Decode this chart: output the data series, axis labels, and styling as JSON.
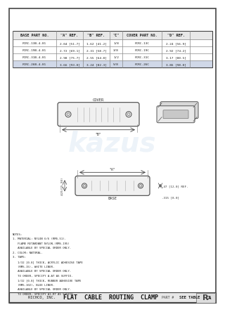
{
  "title": "FLAT CABLE ROUTING CLAMP",
  "bg_color": "#ffffff",
  "border_color": "#888888",
  "table_header": [
    "BASE PART NO.",
    "\"A\" REF.",
    "\"B\" REF.",
    "\"C\"",
    "COVER PART NO.",
    "\"D\" REF."
  ],
  "table_rows": [
    [
      "FCRC-13B-4-01",
      "2.04 [51.7]",
      "1.62 [41.2]",
      "1/8",
      "FCRC-13C",
      "2.24 [56.9]"
    ],
    [
      "FCRC-19B-4-01",
      "2.72 [69.1]",
      "2.31 [58.7]",
      "3/8",
      "FCRC-19C",
      "2.92 [74.2]"
    ],
    [
      "FCRC-31B-4-01",
      "2.98 [75.7]",
      "2.55 [64.8]",
      "1/2",
      "FCRC-31C",
      "3.17 [80.5]"
    ],
    [
      "FCRC-26B-4-01",
      "3.66 [93.0]",
      "3.24 [82.3]",
      "5/8",
      "FCRC-26C",
      "3.86 [98.0]"
    ]
  ],
  "notes": [
    "NOTES:",
    "1. MATERIAL: NYLON 6/6 (RMS-51).",
    "   FLAME RETARDANT NYLON-(RMS-195)",
    "   AVAILABLE BY SPECIAL ORDER ONLY.",
    "2. COLOR: NATURAL.",
    "3. TAPE:",
    "   1/32 [0.8] THICK, ACRYLIC ADHESIVE TAPE",
    "   (RMS-15), WHITE LINER.",
    "   AVAILABLE BY SPECIAL ORDER ONLY.",
    "   TO ORDER, SPECIFY A-AT AS SUFFIX.",
    "   1/32 [0.8] THICK, RUBBER ADHESIVE TAPE",
    "   (RMS-102), BLUE LINER.",
    "   AVAILABLE BY SPECIAL ORDER ONLY.",
    "   TO ORDER, SPECIFY A1-RT AS SUFFIX."
  ],
  "footer_left": "RICHCO, INC.",
  "footer_title": "FLAT  CABLE  ROUTING  CLAMP",
  "part_label": "SEE TABLE",
  "rev": "CA",
  "dim_a_label": "\"A\"",
  "dim_b_label": "\"B\"",
  "dim_c_label": ".625(15.90)",
  "dim_d_label": ".47 [12.0] REF.",
  "dim_e_label": ".315 [8.0]",
  "cover_label": "COVER",
  "base_label": "BASE"
}
